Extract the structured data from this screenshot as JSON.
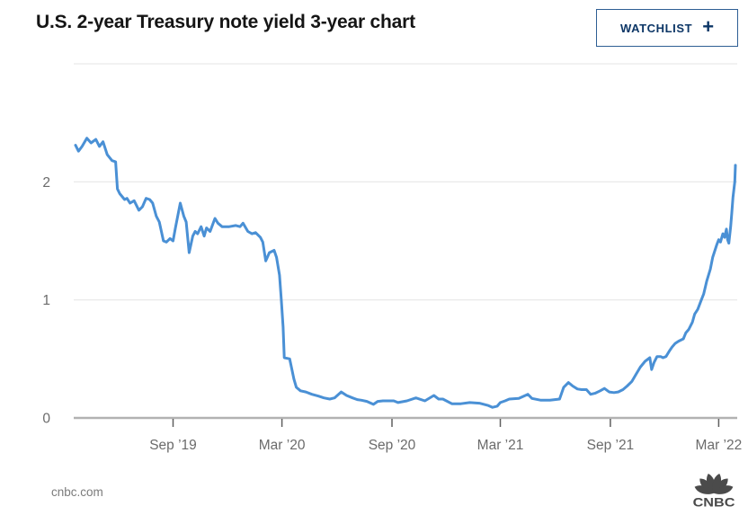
{
  "header": {
    "title": "U.S. 2-year Treasury note yield 3-year chart",
    "watchlist_label": "WATCHLIST",
    "watchlist_plus": "+"
  },
  "footer": {
    "source_text": "cnbc.com",
    "logo_text": "CNBC"
  },
  "colors": {
    "line": "#4a90d5",
    "watchlist_text": "#0c3666",
    "watchlist_border": "#2e5e94",
    "title": "#151515",
    "grid": "#e4e4e4",
    "axis": "#b2b2b2",
    "tick_mark": "#5f5f5f",
    "tick_label": "#6b6b6b",
    "footer_text": "#7b7b7b",
    "logo_gray": "#4b4b4b"
  },
  "chart_data": {
    "type": "line",
    "title": "U.S. 2-year Treasury note yield 3-year chart",
    "xlabel": "",
    "ylabel": "",
    "ylim": [
      0,
      3
    ],
    "x_domain": [
      "2019-03-22",
      "2022-03-29"
    ],
    "grid": true,
    "legend": false,
    "gridlines": [
      0,
      1,
      2,
      3
    ],
    "yticks": [
      {
        "v": 0,
        "label": "0"
      },
      {
        "v": 1,
        "label": "1"
      },
      {
        "v": 2,
        "label": "2"
      }
    ],
    "xticks": [
      {
        "date": "2019-09-01",
        "label": "Sep ’19"
      },
      {
        "date": "2020-03-01",
        "label": "Mar ’20"
      },
      {
        "date": "2020-09-01",
        "label": "Sep ’20"
      },
      {
        "date": "2021-03-01",
        "label": "Mar ’21"
      },
      {
        "date": "2021-09-01",
        "label": "Sep ’21"
      },
      {
        "date": "2022-03-01",
        "label": "Mar ’22"
      }
    ],
    "series": [
      {
        "name": "U.S. 2-year Treasury note yield (%)",
        "points": [
          [
            "2019-03-22",
            2.31
          ],
          [
            "2019-03-27",
            2.26
          ],
          [
            "2019-04-02",
            2.3
          ],
          [
            "2019-04-10",
            2.37
          ],
          [
            "2019-04-17",
            2.33
          ],
          [
            "2019-04-25",
            2.36
          ],
          [
            "2019-05-01",
            2.3
          ],
          [
            "2019-05-07",
            2.34
          ],
          [
            "2019-05-14",
            2.23
          ],
          [
            "2019-05-22",
            2.18
          ],
          [
            "2019-05-28",
            2.17
          ],
          [
            "2019-05-31",
            1.94
          ],
          [
            "2019-06-04",
            1.9
          ],
          [
            "2019-06-12",
            1.85
          ],
          [
            "2019-06-16",
            1.86
          ],
          [
            "2019-06-21",
            1.82
          ],
          [
            "2019-06-28",
            1.84
          ],
          [
            "2019-07-06",
            1.76
          ],
          [
            "2019-07-12",
            1.79
          ],
          [
            "2019-07-18",
            1.86
          ],
          [
            "2019-07-24",
            1.85
          ],
          [
            "2019-07-29",
            1.82
          ],
          [
            "2019-08-04",
            1.71
          ],
          [
            "2019-08-09",
            1.66
          ],
          [
            "2019-08-16",
            1.5
          ],
          [
            "2019-08-21",
            1.49
          ],
          [
            "2019-08-27",
            1.52
          ],
          [
            "2019-09-01",
            1.5
          ],
          [
            "2019-09-05",
            1.61
          ],
          [
            "2019-09-13",
            1.82
          ],
          [
            "2019-09-19",
            1.71
          ],
          [
            "2019-09-23",
            1.66
          ],
          [
            "2019-09-28",
            1.4
          ],
          [
            "2019-10-04",
            1.54
          ],
          [
            "2019-10-08",
            1.58
          ],
          [
            "2019-10-12",
            1.56
          ],
          [
            "2019-10-18",
            1.62
          ],
          [
            "2019-10-23",
            1.54
          ],
          [
            "2019-10-27",
            1.61
          ],
          [
            "2019-11-02",
            1.58
          ],
          [
            "2019-11-10",
            1.69
          ],
          [
            "2019-11-15",
            1.65
          ],
          [
            "2019-11-22",
            1.62
          ],
          [
            "2019-12-04",
            1.62
          ],
          [
            "2019-12-15",
            1.63
          ],
          [
            "2019-12-22",
            1.62
          ],
          [
            "2019-12-27",
            1.65
          ],
          [
            "2020-01-04",
            1.58
          ],
          [
            "2020-01-11",
            1.56
          ],
          [
            "2020-01-17",
            1.57
          ],
          [
            "2020-01-25",
            1.53
          ],
          [
            "2020-01-29",
            1.49
          ],
          [
            "2020-02-03",
            1.33
          ],
          [
            "2020-02-09",
            1.4
          ],
          [
            "2020-02-17",
            1.42
          ],
          [
            "2020-02-21",
            1.36
          ],
          [
            "2020-02-26",
            1.21
          ],
          [
            "2020-02-29",
            1.0
          ],
          [
            "2020-03-03",
            0.77
          ],
          [
            "2020-03-05",
            0.51
          ],
          [
            "2020-03-14",
            0.5
          ],
          [
            "2020-03-16",
            0.45
          ],
          [
            "2020-03-21",
            0.33
          ],
          [
            "2020-03-25",
            0.26
          ],
          [
            "2020-04-01",
            0.23
          ],
          [
            "2020-04-10",
            0.22
          ],
          [
            "2020-04-20",
            0.2
          ],
          [
            "2020-05-01",
            0.185
          ],
          [
            "2020-05-10",
            0.17
          ],
          [
            "2020-05-20",
            0.16
          ],
          [
            "2020-05-28",
            0.17
          ],
          [
            "2020-06-08",
            0.22
          ],
          [
            "2020-06-17",
            0.19
          ],
          [
            "2020-06-27",
            0.17
          ],
          [
            "2020-07-05",
            0.155
          ],
          [
            "2020-07-12",
            0.15
          ],
          [
            "2020-07-21",
            0.14
          ],
          [
            "2020-08-01",
            0.115
          ],
          [
            "2020-08-08",
            0.14
          ],
          [
            "2020-08-17",
            0.145
          ],
          [
            "2020-08-26",
            0.145
          ],
          [
            "2020-09-04",
            0.145
          ],
          [
            "2020-09-11",
            0.13
          ],
          [
            "2020-09-26",
            0.145
          ],
          [
            "2020-10-11",
            0.17
          ],
          [
            "2020-10-26",
            0.145
          ],
          [
            "2020-11-10",
            0.19
          ],
          [
            "2020-11-18",
            0.16
          ],
          [
            "2020-11-25",
            0.16
          ],
          [
            "2020-12-10",
            0.12
          ],
          [
            "2020-12-25",
            0.12
          ],
          [
            "2021-01-09",
            0.13
          ],
          [
            "2021-01-25",
            0.125
          ],
          [
            "2021-02-09",
            0.105
          ],
          [
            "2021-02-16",
            0.09
          ],
          [
            "2021-02-24",
            0.1
          ],
          [
            "2021-03-01",
            0.13
          ],
          [
            "2021-03-09",
            0.145
          ],
          [
            "2021-03-16",
            0.16
          ],
          [
            "2021-04-01",
            0.165
          ],
          [
            "2021-04-16",
            0.2
          ],
          [
            "2021-04-23",
            0.165
          ],
          [
            "2021-05-08",
            0.15
          ],
          [
            "2021-05-23",
            0.15
          ],
          [
            "2021-06-08",
            0.16
          ],
          [
            "2021-06-15",
            0.26
          ],
          [
            "2021-06-23",
            0.3
          ],
          [
            "2021-06-30",
            0.27
          ],
          [
            "2021-07-08",
            0.245
          ],
          [
            "2021-07-15",
            0.24
          ],
          [
            "2021-07-23",
            0.24
          ],
          [
            "2021-07-30",
            0.2
          ],
          [
            "2021-08-07",
            0.21
          ],
          [
            "2021-08-15",
            0.23
          ],
          [
            "2021-08-22",
            0.25
          ],
          [
            "2021-08-30",
            0.22
          ],
          [
            "2021-09-07",
            0.215
          ],
          [
            "2021-09-14",
            0.22
          ],
          [
            "2021-09-22",
            0.24
          ],
          [
            "2021-09-29",
            0.27
          ],
          [
            "2021-10-07",
            0.31
          ],
          [
            "2021-10-14",
            0.37
          ],
          [
            "2021-10-21",
            0.43
          ],
          [
            "2021-10-29",
            0.48
          ],
          [
            "2021-11-06",
            0.51
          ],
          [
            "2021-11-09",
            0.41
          ],
          [
            "2021-11-13",
            0.47
          ],
          [
            "2021-11-18",
            0.52
          ],
          [
            "2021-11-24",
            0.52
          ],
          [
            "2021-11-28",
            0.51
          ],
          [
            "2021-12-03",
            0.52
          ],
          [
            "2021-12-09",
            0.57
          ],
          [
            "2021-12-13",
            0.6
          ],
          [
            "2021-12-18",
            0.63
          ],
          [
            "2021-12-24",
            0.65
          ],
          [
            "2022-01-01",
            0.67
          ],
          [
            "2022-01-05",
            0.72
          ],
          [
            "2022-01-10",
            0.75
          ],
          [
            "2022-01-16",
            0.81
          ],
          [
            "2022-01-20",
            0.88
          ],
          [
            "2022-01-25",
            0.92
          ],
          [
            "2022-01-31",
            1.0
          ],
          [
            "2022-02-04",
            1.05
          ],
          [
            "2022-02-09",
            1.16
          ],
          [
            "2022-02-15",
            1.26
          ],
          [
            "2022-02-19",
            1.36
          ],
          [
            "2022-02-26",
            1.47
          ],
          [
            "2022-03-01",
            1.51
          ],
          [
            "2022-03-04",
            1.49
          ],
          [
            "2022-03-08",
            1.56
          ],
          [
            "2022-03-11",
            1.53
          ],
          [
            "2022-03-14",
            1.6
          ],
          [
            "2022-03-16",
            1.51
          ],
          [
            "2022-03-18",
            1.48
          ],
          [
            "2022-03-21",
            1.62
          ],
          [
            "2022-03-23",
            1.74
          ],
          [
            "2022-03-25",
            1.87
          ],
          [
            "2022-03-28",
            2.0
          ],
          [
            "2022-03-29",
            2.14
          ]
        ]
      }
    ]
  }
}
